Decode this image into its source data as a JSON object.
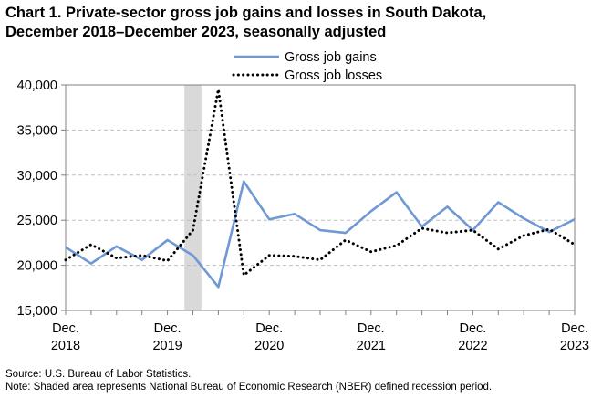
{
  "title": {
    "line1": "Chart 1. Private-sector gross job gains and losses in South Dakota,",
    "line2": "December 2018–December 2023, seasonally adjusted"
  },
  "footnotes": {
    "source": "Source: U.S. Bureau of Labor Statistics.",
    "note": "Note: Shaded area represents National Bureau of Economic Research (NBER) defined  recession period."
  },
  "chart_data": {
    "type": "line",
    "x": [
      "2018-12",
      "2019-03",
      "2019-06",
      "2019-09",
      "2019-12",
      "2020-03",
      "2020-06",
      "2020-09",
      "2020-12",
      "2021-03",
      "2021-06",
      "2021-09",
      "2021-12",
      "2022-03",
      "2022-06",
      "2022-09",
      "2022-12",
      "2023-03",
      "2023-06",
      "2023-09",
      "2023-12"
    ],
    "series": [
      {
        "name": "Gross job gains",
        "style": "solid",
        "color": "#6f98d4",
        "values": [
          22000,
          20200,
          22100,
          20600,
          22800,
          21100,
          17600,
          29300,
          25100,
          25700,
          23900,
          23600,
          26000,
          28100,
          24300,
          26500,
          23900,
          27000,
          25200,
          23700,
          25100
        ]
      },
      {
        "name": "Gross job losses",
        "style": "dotted",
        "color": "#000000",
        "values": [
          20600,
          22300,
          20800,
          21100,
          20500,
          23900,
          39500,
          18900,
          21100,
          21000,
          20600,
          22800,
          21500,
          22200,
          24100,
          23600,
          23900,
          21800,
          23300,
          24000,
          22300
        ]
      }
    ],
    "ylim": [
      15000,
      40000
    ],
    "yticks": [
      "15,000",
      "20,000",
      "25,000",
      "30,000",
      "35,000",
      "40,000"
    ],
    "ytick_values": [
      15000,
      20000,
      25000,
      30000,
      35000,
      40000
    ],
    "xticks": [
      {
        "month": "Dec.",
        "year": "2018",
        "index": 0
      },
      {
        "month": "Dec.",
        "year": "2019",
        "index": 4
      },
      {
        "month": "Dec.",
        "year": "2020",
        "index": 8
      },
      {
        "month": "Dec.",
        "year": "2021",
        "index": 12
      },
      {
        "month": "Dec.",
        "year": "2022",
        "index": 16
      },
      {
        "month": "Dec.",
        "year": "2023",
        "index": 20
      }
    ],
    "recession": {
      "start": "2020-02",
      "end": "2020-04",
      "color": "#d9d9d9"
    },
    "grid": "horizontal dashed",
    "legend_position": "top-center"
  }
}
